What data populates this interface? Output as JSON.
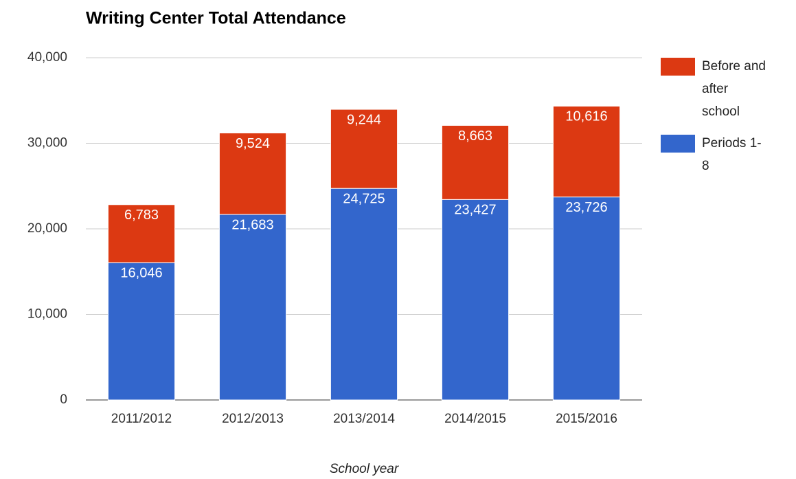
{
  "chart_data": {
    "type": "stacked_bar",
    "title": "Writing Center Total Attendance",
    "x_label": "School year",
    "categories": [
      "2011/2012",
      "2012/2013",
      "2013/2014",
      "2014/2015",
      "2015/2016"
    ],
    "series": [
      {
        "name": "Before and after school",
        "color": "#dc3912",
        "values": [
          6783,
          9524,
          9244,
          8663,
          10616
        ],
        "value_labels": [
          "6,783",
          "9,524",
          "9,244",
          "8,663",
          "10,616"
        ]
      },
      {
        "name": "Periods 1-8",
        "color": "#3366cc",
        "values": [
          16046,
          21683,
          24725,
          23427,
          23726
        ],
        "value_labels": [
          "16,046",
          "21,683",
          "24,725",
          "23,427",
          "23,726"
        ]
      }
    ],
    "ylim": [
      0,
      40000
    ],
    "yticks": [
      0,
      {
        "value": 10000,
        "label": "10,000"
      },
      {
        "value": 20000,
        "label": "20,000"
      },
      {
        "value": 30000,
        "label": "30,000"
      },
      {
        "value": 40000,
        "label": "40,000"
      }
    ],
    "grid": true,
    "legend": "right"
  }
}
